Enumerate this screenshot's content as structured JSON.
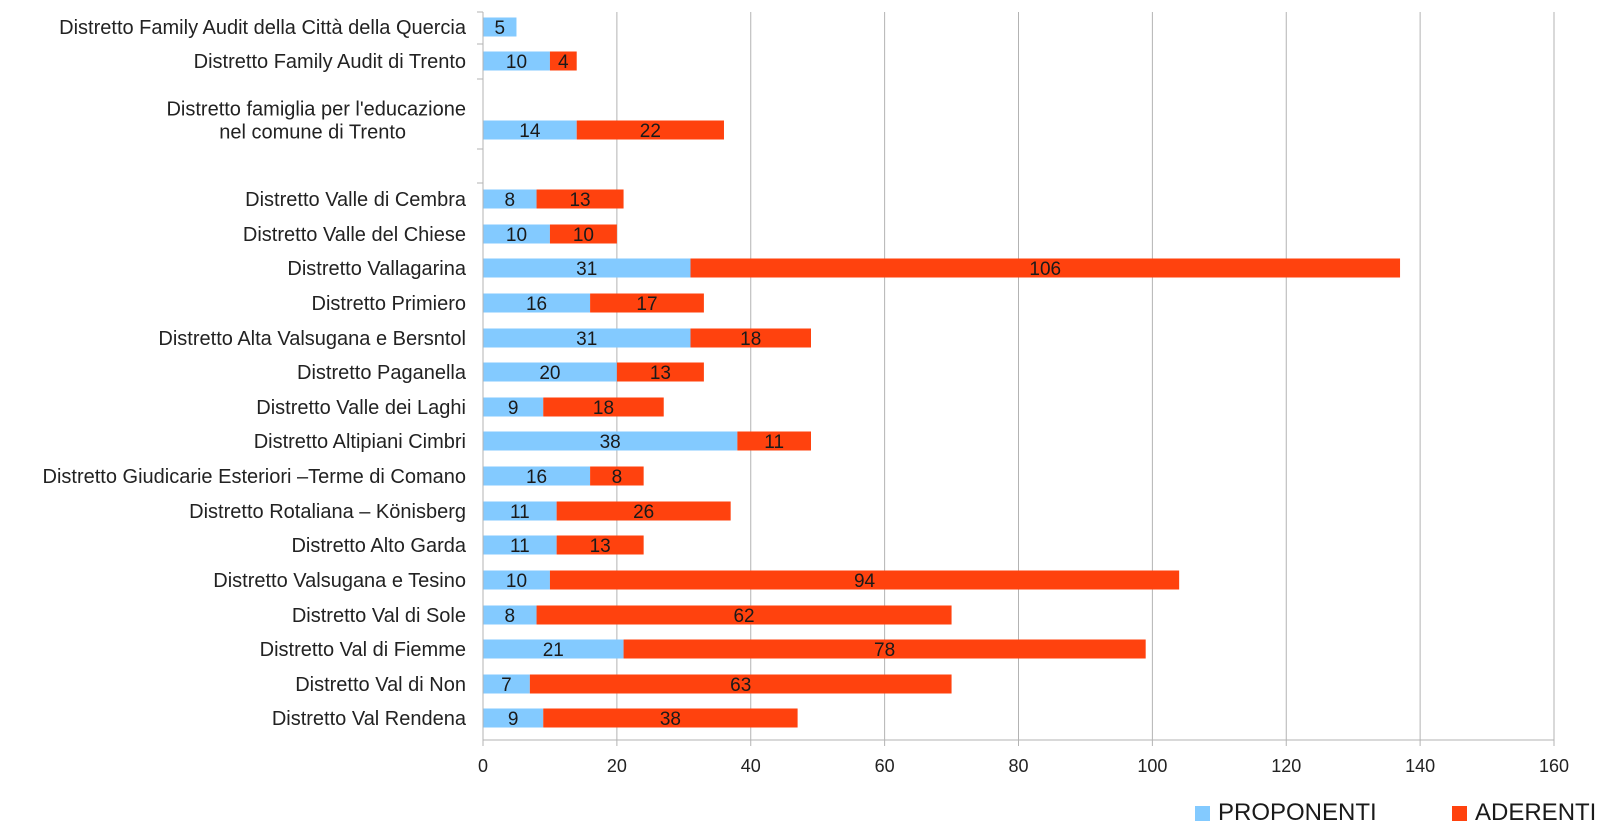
{
  "chart_data": {
    "type": "bar",
    "orientation": "horizontal",
    "stacked": true,
    "title": "",
    "xlabel": "",
    "ylabel": "",
    "xlim": [
      0,
      160
    ],
    "x_ticks": [
      0,
      20,
      40,
      60,
      80,
      100,
      120,
      140,
      160
    ],
    "grid": true,
    "legend_position": "bottom-right",
    "categories": [
      [
        "Distretto Family Audit della Città della Quercia"
      ],
      [
        "Distretto Family Audit di Trento"
      ],
      [
        "Distretto famiglia per l'educazione",
        "nel comune di Trento"
      ],
      [
        "Distretto Valle di Cembra"
      ],
      [
        "Distretto Valle del Chiese"
      ],
      [
        "Distretto Vallagarina"
      ],
      [
        "Distretto Primiero"
      ],
      [
        "Distretto Alta Valsugana e Bersntol"
      ],
      [
        "Distretto Paganella"
      ],
      [
        "Distretto Valle dei Laghi"
      ],
      [
        "Distretto Altipiani Cimbri"
      ],
      [
        "Distretto Giudicarie Esteriori –Terme di Comano"
      ],
      [
        "Distretto Rotaliana – Könisberg"
      ],
      [
        "Distretto Alto Garda"
      ],
      [
        "Distretto Valsugana e Tesino"
      ],
      [
        "Distretto Val di Sole"
      ],
      [
        "Distretto Val di Fiemme"
      ],
      [
        "Distretto Val di Non"
      ],
      [
        "Distretto Val Rendena"
      ]
    ],
    "series": [
      {
        "name": "PROPONENTI",
        "color": "#83caff",
        "values": [
          5,
          10,
          14,
          8,
          10,
          31,
          16,
          31,
          20,
          9,
          38,
          16,
          11,
          11,
          10,
          8,
          21,
          7,
          9
        ]
      },
      {
        "name": "ADERENTI",
        "color": "#ff420e",
        "values": [
          null,
          4,
          22,
          13,
          10,
          106,
          17,
          18,
          13,
          18,
          11,
          8,
          26,
          13,
          94,
          62,
          78,
          63,
          38
        ]
      }
    ]
  }
}
